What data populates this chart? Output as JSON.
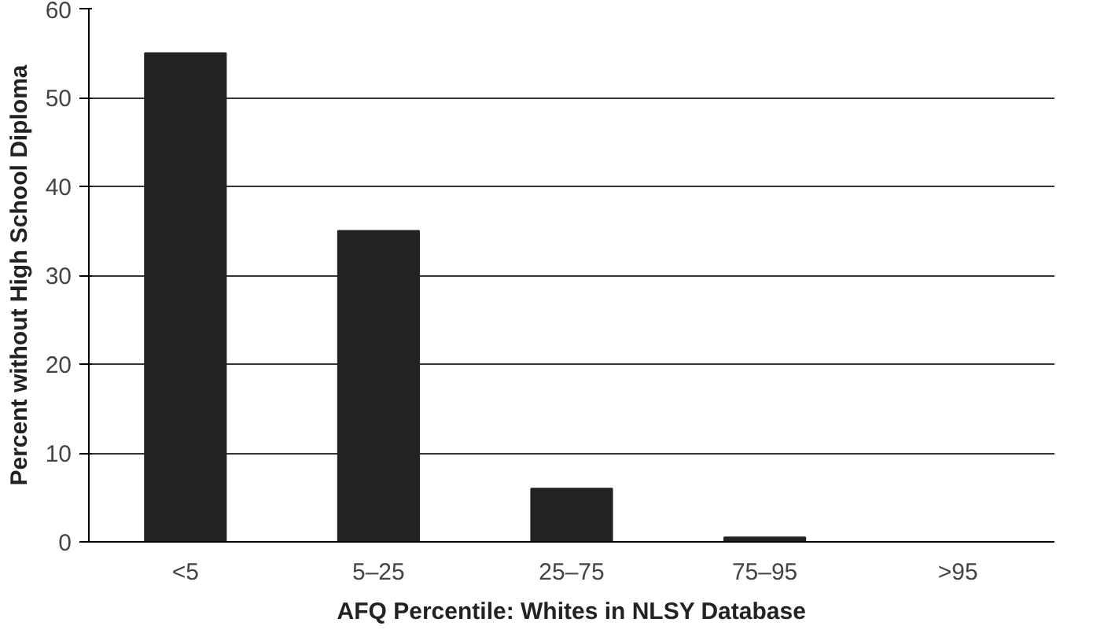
{
  "chart_data": {
    "type": "bar",
    "xlabel": "AFQ Percentile: Whites in NLSY Database",
    "ylabel": "Percent without High School Diploma",
    "categories": [
      "<5",
      "5–25",
      "25–75",
      "75–95",
      ">95"
    ],
    "values": [
      55,
      35,
      6,
      0.5,
      0
    ],
    "color": "#222222",
    "ylim": [
      0,
      60
    ],
    "yticks": [
      0,
      10,
      20,
      30,
      40,
      50,
      60
    ],
    "grid": "y"
  }
}
